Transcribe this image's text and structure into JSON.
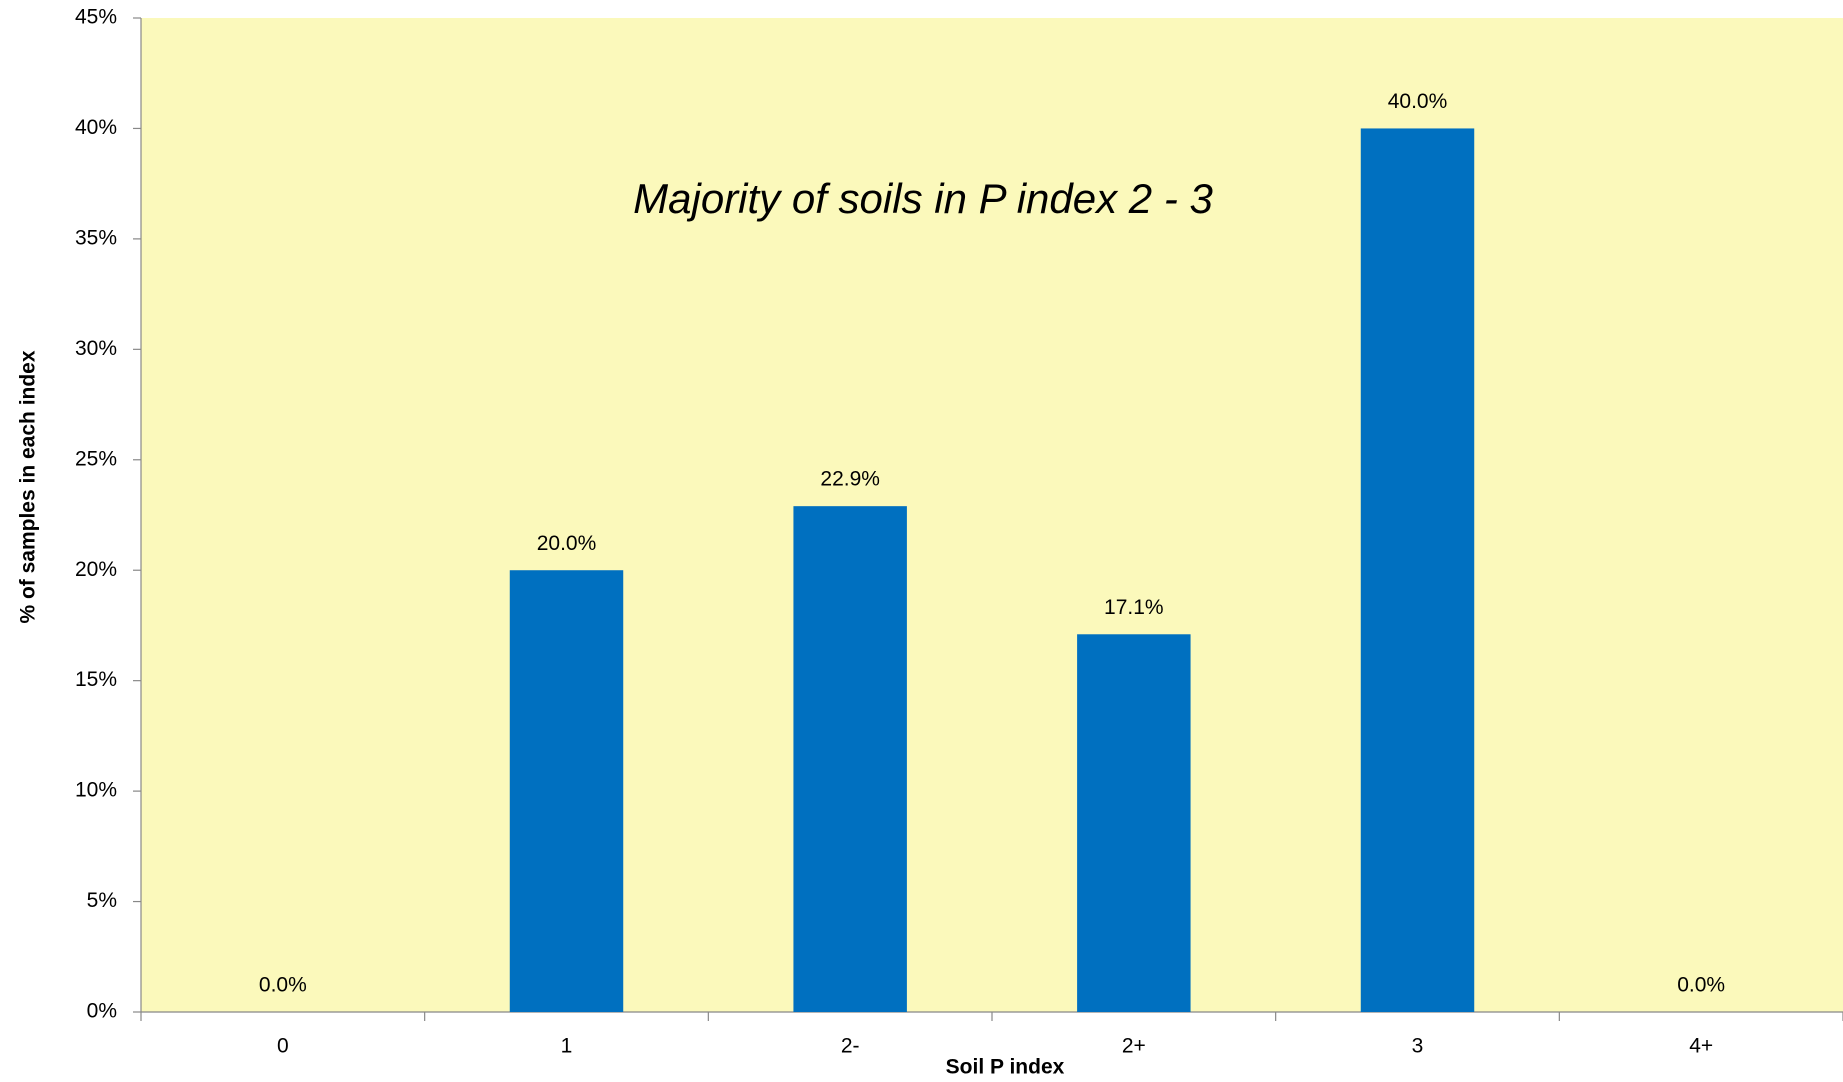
{
  "chart_data": {
    "type": "bar",
    "annotation": "Majority of soils in P index 2 - 3",
    "x_label": "Soil P index",
    "y_label": "% of samples in each index",
    "categories": [
      "0",
      "1",
      "2-",
      "2+",
      "3",
      "4+"
    ],
    "values": [
      0,
      20,
      22.9,
      17.1,
      40,
      0
    ],
    "value_labels": [
      "0.0%",
      "20.0%",
      "22.9%",
      "17.1%",
      "40.0%",
      "0.0%"
    ],
    "color": "#0070c0",
    "background": "#fbf9bb",
    "ylim": [
      0,
      45
    ],
    "yticks": [
      {
        "value": 0,
        "label": "0%"
      },
      {
        "value": 5,
        "label": "5%"
      },
      {
        "value": 10,
        "label": "10%"
      },
      {
        "value": 15,
        "label": "15%"
      },
      {
        "value": 20,
        "label": "20%"
      },
      {
        "value": 25,
        "label": "25%"
      },
      {
        "value": 30,
        "label": "30%"
      },
      {
        "value": 35,
        "label": "35%"
      },
      {
        "value": 40,
        "label": "40%"
      },
      {
        "value": 45,
        "label": "45%"
      }
    ],
    "grid": false
  }
}
